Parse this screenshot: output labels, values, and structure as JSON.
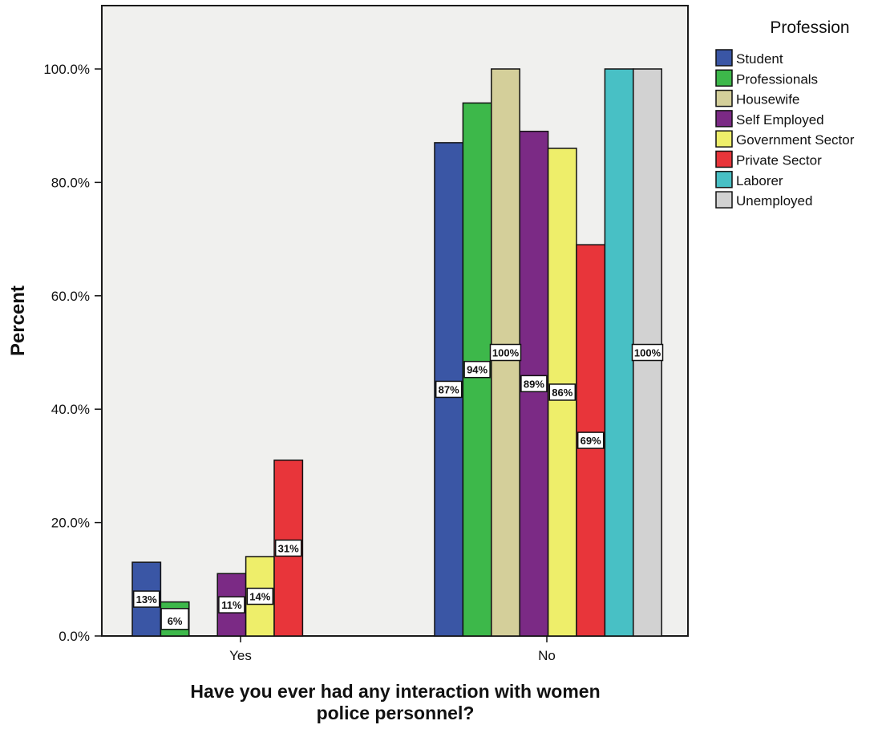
{
  "chart_data": {
    "type": "bar",
    "categories": [
      "Yes",
      "No"
    ],
    "xlabel": "Have you ever had any interaction with women police personnel?",
    "xlabel_lines": [
      "Have you ever had any interaction with women",
      "police personnel?"
    ],
    "ylabel": "Percent",
    "ylim": [
      0,
      110
    ],
    "yticks": [
      0,
      20,
      40,
      60,
      80,
      100
    ],
    "ytick_labels": [
      "0.0%",
      "20.0%",
      "40.0%",
      "60.0%",
      "80.0%",
      "100.0%"
    ],
    "legend_title": "Profession",
    "legend_position": "right",
    "grid": false,
    "series": [
      {
        "name": "Student",
        "color": "#3a56a5",
        "values": [
          13,
          87
        ],
        "labels": [
          "13%",
          "87%"
        ]
      },
      {
        "name": "Professionals",
        "color": "#3db84a",
        "values": [
          6,
          94
        ],
        "labels": [
          "6%",
          "94%"
        ]
      },
      {
        "name": "Housewife",
        "color": "#d4cf9a",
        "values": [
          null,
          100
        ],
        "labels": [
          null,
          "100%"
        ]
      },
      {
        "name": "Self Employed",
        "color": "#7b2a85",
        "values": [
          11,
          89
        ],
        "labels": [
          "11%",
          "89%"
        ]
      },
      {
        "name": "Government Sector",
        "color": "#eeee6a",
        "values": [
          14,
          86
        ],
        "labels": [
          "14%",
          "86%"
        ]
      },
      {
        "name": "Private Sector",
        "color": "#e8353a",
        "values": [
          31,
          69
        ],
        "labels": [
          "31%",
          "69%"
        ]
      },
      {
        "name": "Laborer",
        "color": "#48c0c5",
        "values": [
          null,
          100
        ],
        "labels": [
          null,
          ""
        ]
      },
      {
        "name": "Unemployed",
        "color": "#d2d2d2",
        "values": [
          null,
          100
        ],
        "labels": [
          null,
          "100%"
        ]
      }
    ]
  }
}
